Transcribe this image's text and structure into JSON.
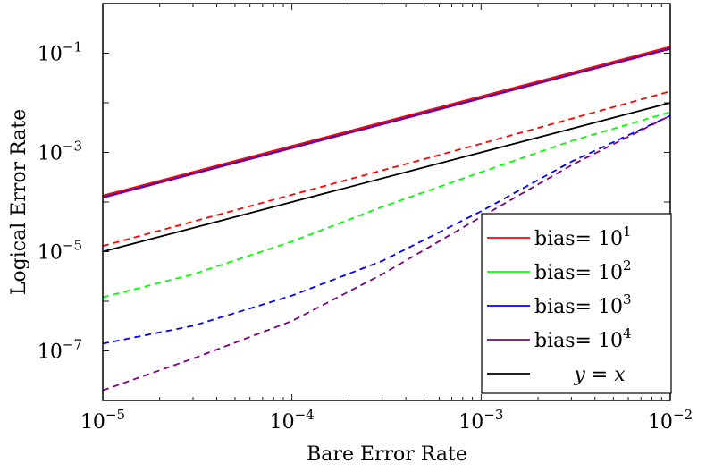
{
  "chart_data": {
    "type": "line",
    "title": "",
    "xlabel": "Bare Error Rate",
    "ylabel": "Logical Error Rate",
    "xscale": "log",
    "yscale": "log",
    "xlim": [
      1e-05,
      0.01
    ],
    "ylim": [
      1e-08,
      1.0
    ],
    "x_ticks": [
      {
        "value": 1e-05,
        "base": "10",
        "exp": "−5"
      },
      {
        "value": 0.0001,
        "base": "10",
        "exp": "−4"
      },
      {
        "value": 0.001,
        "base": "10",
        "exp": "−3"
      },
      {
        "value": 0.01,
        "base": "10",
        "exp": "−2"
      }
    ],
    "y_ticks": [
      {
        "value": 1e-07,
        "base": "10",
        "exp": "−7"
      },
      {
        "value": 1e-05,
        "base": "10",
        "exp": "−5"
      },
      {
        "value": 0.001,
        "base": "10",
        "exp": "−3"
      },
      {
        "value": 0.1,
        "base": "10",
        "exp": "−1"
      }
    ],
    "grid": false,
    "legend_position": "bottom-right",
    "legend": [
      {
        "text": "bias= 10",
        "sup": "1",
        "color": "#ff0000"
      },
      {
        "text": "bias= 10",
        "sup": "2",
        "color": "#00ff00"
      },
      {
        "text": "bias= 10",
        "sup": "3",
        "color": "#0000ff"
      },
      {
        "text": "bias= 10",
        "sup": "4",
        "color": "#800080"
      },
      {
        "text": "y = x",
        "sup": "",
        "color": "#000000",
        "italic": true
      }
    ],
    "series": [
      {
        "color": "#ff0000",
        "dash": "solid",
        "x": [
          1e-05,
          0.0001,
          0.001,
          0.01
        ],
        "y": [
          0.000135,
          0.00135,
          0.0135,
          0.135
        ]
      },
      {
        "color": "#0000ff",
        "dash": "solid",
        "x": [
          1e-05,
          0.0001,
          0.001,
          0.01
        ],
        "y": [
          0.000125,
          0.00125,
          0.0125,
          0.125
        ]
      },
      {
        "color": "#800080",
        "dash": "solid",
        "x": [
          1e-05,
          0.0001,
          0.001,
          0.01
        ],
        "y": [
          0.000122,
          0.00122,
          0.0122,
          0.122
        ]
      },
      {
        "color": "#000000",
        "dash": "solid",
        "x": [
          1e-05,
          0.01
        ],
        "y": [
          1e-05,
          0.01
        ]
      },
      {
        "color": "#ff0000",
        "dash": "dashed",
        "x": [
          1e-05,
          0.0001,
          0.001,
          0.01
        ],
        "y": [
          1.3e-05,
          0.00014,
          0.0015,
          0.017
        ]
      },
      {
        "color": "#00ff00",
        "dash": "dashed",
        "x": [
          1e-05,
          3e-05,
          0.0001,
          0.0003,
          0.001,
          0.003,
          0.01
        ],
        "y": [
          1.2e-06,
          3.5e-06,
          1.6e-05,
          8e-05,
          0.0004,
          0.0017,
          0.0065
        ]
      },
      {
        "color": "#0000ff",
        "dash": "dashed",
        "x": [
          1e-05,
          3e-05,
          0.0001,
          0.0003,
          0.001,
          0.003,
          0.01
        ],
        "y": [
          1.4e-07,
          3.2e-07,
          1.3e-06,
          6.5e-06,
          6.5e-05,
          0.00065,
          0.0055
        ]
      },
      {
        "color": "#800080",
        "dash": "dashed",
        "x": [
          1e-05,
          3e-05,
          0.0001,
          0.0003,
          0.001,
          0.003,
          0.01
        ],
        "y": [
          1.6e-08,
          7e-08,
          4e-07,
          3.5e-06,
          5e-05,
          0.00055,
          0.0055
        ]
      }
    ]
  }
}
